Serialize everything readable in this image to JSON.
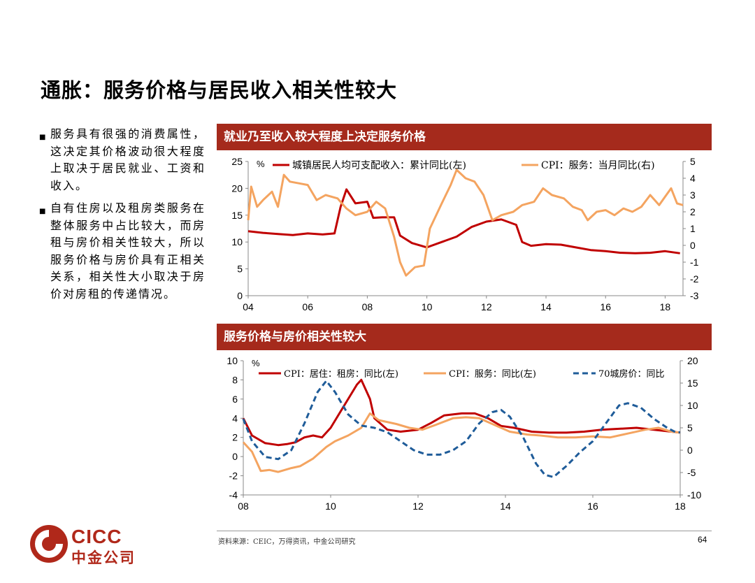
{
  "page": {
    "title": "通胀：服务价格与居民收入相关性较大",
    "bullets": [
      "服务具有很强的消费属性，这决定其价格波动很大程度上取决于居民就业、工资和收入。",
      "自有住房以及租房类服务在整体服务中占比较大，而房租与房价相关性较大，所以服务价格与房价具有正相关关系，相关性大小取决于房价对房租的传递情况。"
    ],
    "source": "资料来源：CEIC，万得资讯，中金公司研究",
    "page_number": "64",
    "logo_text_en": "CICC",
    "logo_text_cn": "中金公司"
  },
  "colors": {
    "red": "#c00000",
    "orange": "#f4a460",
    "blue": "#1f5c99",
    "bar": "#a52a1c",
    "brand": "#b0281a"
  },
  "chart_data": [
    {
      "type": "line",
      "title": "就业乃至收入较大程度上决定服务价格",
      "unit_label": "%",
      "x_ticks": [
        "04",
        "06",
        "08",
        "10",
        "12",
        "14",
        "16",
        "18"
      ],
      "xlim": [
        2004.0,
        2018.6
      ],
      "y_left": {
        "ticks": [
          0,
          5,
          10,
          15,
          20,
          25
        ],
        "lim": [
          0,
          25
        ]
      },
      "y_right": {
        "ticks": [
          -3,
          -2,
          -1,
          0,
          1,
          2,
          3,
          4,
          5
        ],
        "lim": [
          -3,
          5
        ]
      },
      "series": [
        {
          "name": "城镇居民人均可支配收入：累计同比(左)",
          "axis": "left",
          "color": "#c00000",
          "points": [
            [
              2004.0,
              12.0
            ],
            [
              2004.5,
              11.7
            ],
            [
              2005.0,
              11.5
            ],
            [
              2005.5,
              11.3
            ],
            [
              2006.0,
              11.6
            ],
            [
              2006.5,
              11.4
            ],
            [
              2006.9,
              11.6
            ],
            [
              2007.1,
              16.5
            ],
            [
              2007.3,
              19.8
            ],
            [
              2007.6,
              17.2
            ],
            [
              2008.0,
              17.5
            ],
            [
              2008.2,
              14.5
            ],
            [
              2008.5,
              14.6
            ],
            [
              2008.9,
              14.6
            ],
            [
              2009.1,
              11.2
            ],
            [
              2009.5,
              9.8
            ],
            [
              2010.0,
              9.0
            ],
            [
              2010.5,
              10.0
            ],
            [
              2011.0,
              11.0
            ],
            [
              2011.5,
              12.8
            ],
            [
              2012.0,
              13.8
            ],
            [
              2012.5,
              14.2
            ],
            [
              2013.0,
              13.2
            ],
            [
              2013.2,
              10.0
            ],
            [
              2013.5,
              9.3
            ],
            [
              2014.0,
              9.6
            ],
            [
              2014.5,
              9.5
            ],
            [
              2015.0,
              9.0
            ],
            [
              2015.5,
              8.5
            ],
            [
              2016.0,
              8.3
            ],
            [
              2016.5,
              8.0
            ],
            [
              2017.0,
              7.9
            ],
            [
              2017.5,
              8.0
            ],
            [
              2018.0,
              8.3
            ],
            [
              2018.5,
              7.9
            ]
          ]
        },
        {
          "name": "CPI：服务：当月同比(右)",
          "axis": "right",
          "color": "#f4a460",
          "points": [
            [
              2004.0,
              1.5
            ],
            [
              2004.1,
              3.5
            ],
            [
              2004.3,
              2.3
            ],
            [
              2004.5,
              2.7
            ],
            [
              2004.8,
              3.2
            ],
            [
              2005.0,
              2.3
            ],
            [
              2005.2,
              4.2
            ],
            [
              2005.4,
              3.8
            ],
            [
              2005.7,
              3.7
            ],
            [
              2006.0,
              3.6
            ],
            [
              2006.3,
              2.7
            ],
            [
              2006.6,
              3.0
            ],
            [
              2007.0,
              2.8
            ],
            [
              2007.3,
              2.2
            ],
            [
              2007.6,
              1.8
            ],
            [
              2008.0,
              2.0
            ],
            [
              2008.3,
              2.6
            ],
            [
              2008.6,
              2.2
            ],
            [
              2008.9,
              0.5
            ],
            [
              2009.1,
              -1.0
            ],
            [
              2009.3,
              -1.8
            ],
            [
              2009.6,
              -1.3
            ],
            [
              2009.9,
              -1.2
            ],
            [
              2010.1,
              1.0
            ],
            [
              2010.5,
              2.5
            ],
            [
              2010.8,
              3.6
            ],
            [
              2011.0,
              4.5
            ],
            [
              2011.3,
              4.0
            ],
            [
              2011.6,
              3.8
            ],
            [
              2011.9,
              3.0
            ],
            [
              2012.2,
              1.5
            ],
            [
              2012.5,
              1.8
            ],
            [
              2012.9,
              2.0
            ],
            [
              2013.2,
              2.4
            ],
            [
              2013.6,
              2.6
            ],
            [
              2013.9,
              3.4
            ],
            [
              2014.2,
              3.0
            ],
            [
              2014.6,
              2.8
            ],
            [
              2014.9,
              2.3
            ],
            [
              2015.2,
              2.1
            ],
            [
              2015.4,
              1.5
            ],
            [
              2015.7,
              2.0
            ],
            [
              2016.0,
              2.1
            ],
            [
              2016.3,
              1.8
            ],
            [
              2016.6,
              2.2
            ],
            [
              2016.9,
              2.0
            ],
            [
              2017.2,
              2.3
            ],
            [
              2017.5,
              3.0
            ],
            [
              2017.8,
              2.4
            ],
            [
              2018.0,
              2.9
            ],
            [
              2018.2,
              3.4
            ],
            [
              2018.4,
              2.5
            ],
            [
              2018.6,
              2.4
            ]
          ]
        }
      ]
    },
    {
      "type": "line",
      "title": "服务价格与房价相关性较大",
      "unit_label": "%",
      "x_ticks": [
        "08",
        "10",
        "12",
        "14",
        "16",
        "18"
      ],
      "xlim": [
        2008.0,
        2018.0
      ],
      "y_left": {
        "ticks": [
          -4,
          -2,
          0,
          2,
          4,
          6,
          8,
          10
        ],
        "lim": [
          -4,
          10
        ]
      },
      "y_right": {
        "ticks": [
          -10,
          -5,
          0,
          5,
          10,
          15,
          20
        ],
        "lim": [
          -10,
          20
        ]
      },
      "series": [
        {
          "name": "CPI：居住：租房：同比(左)",
          "axis": "left",
          "color": "#c00000",
          "dash": false,
          "points": [
            [
              2008.0,
              4.0
            ],
            [
              2008.2,
              2.2
            ],
            [
              2008.5,
              1.4
            ],
            [
              2008.8,
              1.2
            ],
            [
              2009.0,
              1.3
            ],
            [
              2009.2,
              1.5
            ],
            [
              2009.4,
              2.0
            ],
            [
              2009.6,
              2.2
            ],
            [
              2009.8,
              2.0
            ],
            [
              2010.0,
              3.0
            ],
            [
              2010.2,
              4.5
            ],
            [
              2010.4,
              6.0
            ],
            [
              2010.6,
              7.5
            ],
            [
              2010.7,
              8.0
            ],
            [
              2010.9,
              6.0
            ],
            [
              2011.0,
              4.0
            ],
            [
              2011.3,
              2.8
            ],
            [
              2011.6,
              2.6
            ],
            [
              2012.0,
              2.8
            ],
            [
              2012.3,
              3.5
            ],
            [
              2012.6,
              4.3
            ],
            [
              2013.0,
              4.5
            ],
            [
              2013.3,
              4.5
            ],
            [
              2013.6,
              4.0
            ],
            [
              2013.9,
              3.2
            ],
            [
              2014.2,
              3.0
            ],
            [
              2014.6,
              2.6
            ],
            [
              2015.0,
              2.5
            ],
            [
              2015.4,
              2.5
            ],
            [
              2015.8,
              2.6
            ],
            [
              2016.2,
              2.8
            ],
            [
              2016.6,
              2.9
            ],
            [
              2017.0,
              3.0
            ],
            [
              2017.4,
              2.8
            ],
            [
              2017.8,
              2.6
            ],
            [
              2018.0,
              2.5
            ]
          ]
        },
        {
          "name": "CPI：服务：同比(左)",
          "axis": "left",
          "color": "#f4a460",
          "dash": false,
          "points": [
            [
              2008.0,
              1.5
            ],
            [
              2008.2,
              0.5
            ],
            [
              2008.4,
              -1.5
            ],
            [
              2008.6,
              -1.4
            ],
            [
              2008.8,
              -1.6
            ],
            [
              2009.1,
              -1.2
            ],
            [
              2009.3,
              -1.0
            ],
            [
              2009.6,
              -0.2
            ],
            [
              2009.9,
              1.0
            ],
            [
              2010.1,
              1.6
            ],
            [
              2010.4,
              2.2
            ],
            [
              2010.7,
              3.0
            ],
            [
              2010.9,
              4.5
            ],
            [
              2011.1,
              3.8
            ],
            [
              2011.5,
              3.4
            ],
            [
              2011.8,
              3.0
            ],
            [
              2012.1,
              2.8
            ],
            [
              2012.4,
              3.3
            ],
            [
              2012.8,
              4.0
            ],
            [
              2013.1,
              4.1
            ],
            [
              2013.4,
              4.0
            ],
            [
              2013.8,
              3.2
            ],
            [
              2014.1,
              2.6
            ],
            [
              2014.5,
              2.3
            ],
            [
              2014.8,
              2.2
            ],
            [
              2015.2,
              2.0
            ],
            [
              2015.6,
              2.0
            ],
            [
              2016.0,
              2.1
            ],
            [
              2016.4,
              2.0
            ],
            [
              2016.8,
              2.4
            ],
            [
              2017.2,
              2.8
            ],
            [
              2017.5,
              3.0
            ],
            [
              2017.8,
              2.6
            ],
            [
              2018.0,
              2.5
            ]
          ]
        },
        {
          "name": "70城房价：同比",
          "axis": "right",
          "color": "#1f5c99",
          "dash": true,
          "points": [
            [
              2008.0,
              7.0
            ],
            [
              2008.2,
              2.0
            ],
            [
              2008.5,
              -1.5
            ],
            [
              2008.8,
              -2.0
            ],
            [
              2009.1,
              0.0
            ],
            [
              2009.4,
              6.0
            ],
            [
              2009.7,
              13.0
            ],
            [
              2009.9,
              15.5
            ],
            [
              2010.1,
              13.0
            ],
            [
              2010.4,
              8.0
            ],
            [
              2010.7,
              5.5
            ],
            [
              2011.0,
              5.0
            ],
            [
              2011.3,
              4.0
            ],
            [
              2011.6,
              2.0
            ],
            [
              2011.9,
              0.0
            ],
            [
              2012.2,
              -1.0
            ],
            [
              2012.5,
              -1.0
            ],
            [
              2012.8,
              0.0
            ],
            [
              2013.1,
              2.0
            ],
            [
              2013.4,
              6.0
            ],
            [
              2013.7,
              8.5
            ],
            [
              2013.9,
              9.0
            ],
            [
              2014.1,
              7.5
            ],
            [
              2014.4,
              3.0
            ],
            [
              2014.7,
              -3.0
            ],
            [
              2014.9,
              -5.5
            ],
            [
              2015.1,
              -6.0
            ],
            [
              2015.4,
              -3.5
            ],
            [
              2015.7,
              -0.5
            ],
            [
              2016.0,
              2.0
            ],
            [
              2016.3,
              6.0
            ],
            [
              2016.6,
              10.0
            ],
            [
              2016.8,
              10.5
            ],
            [
              2017.1,
              9.5
            ],
            [
              2017.4,
              7.0
            ],
            [
              2017.7,
              5.0
            ],
            [
              2017.9,
              4.0
            ],
            [
              2018.0,
              4.0
            ]
          ]
        }
      ]
    }
  ]
}
